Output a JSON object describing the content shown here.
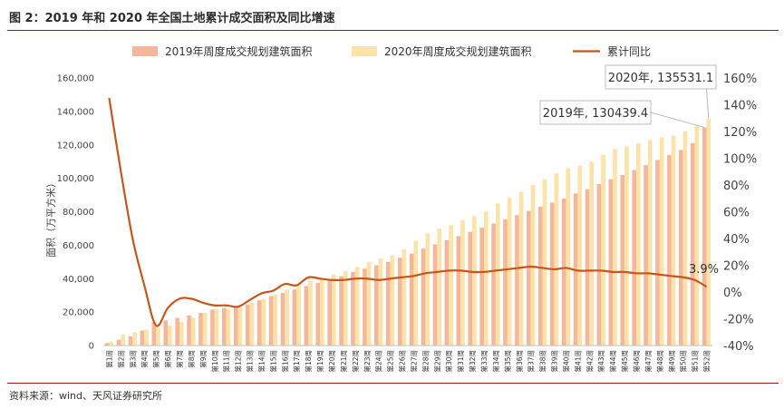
{
  "header": {
    "title": "图 2：2019 年和 2020 年全国土地累计成交面积及同比增速"
  },
  "footer": {
    "source": "资料来源：wind、天风证券研究所"
  },
  "chart_data": {
    "type": "bar",
    "ylabel": "面积（万平方米）",
    "ylim": [
      0,
      160000
    ],
    "y_ticks": [
      "0",
      "20,000",
      "40,000",
      "60,000",
      "80,000",
      "100,000",
      "120,000",
      "140,000",
      "160,000"
    ],
    "y2lim": [
      -40,
      160
    ],
    "y2_ticks": [
      "-40%",
      "-20%",
      "0%",
      "20%",
      "40%",
      "60%",
      "80%",
      "100%",
      "120%",
      "140%",
      "160%"
    ],
    "legend_position": "top",
    "categories": [
      "第1周",
      "第2周",
      "第3周",
      "第4周",
      "第5周",
      "第6周",
      "第7周",
      "第8周",
      "第9周",
      "第10周",
      "第11周",
      "第12周",
      "第13周",
      "第14周",
      "第15周",
      "第16周",
      "第17周",
      "第18周",
      "第19周",
      "第20周",
      "第21周",
      "第22周",
      "第23周",
      "第24周",
      "第25周",
      "第26周",
      "第27周",
      "第28周",
      "第29周",
      "第30周",
      "第31周",
      "第32周",
      "第33周",
      "第34周",
      "第35周",
      "第36周",
      "第37周",
      "第38周",
      "第39周",
      "第40周",
      "第41周",
      "第42周",
      "第43周",
      "第44周",
      "第45周",
      "第46周",
      "第47周",
      "第48周",
      "第49周",
      "第50周",
      "第51周",
      "第52周"
    ],
    "series": [
      {
        "name": "2019年周度成交规划建筑面积",
        "kind": "bar",
        "color": "#f5b79b",
        "values": [
          1500,
          3500,
          5500,
          9000,
          14000,
          15000,
          16500,
          18000,
          19500,
          21500,
          22500,
          23000,
          24500,
          27000,
          29500,
          31500,
          33500,
          35500,
          37500,
          39500,
          41500,
          44000,
          46000,
          48000,
          50000,
          52500,
          55000,
          58000,
          60500,
          63000,
          65500,
          68000,
          70500,
          73000,
          75500,
          78000,
          80500,
          83000,
          85500,
          88000,
          91000,
          93500,
          96500,
          99500,
          102000,
          105000,
          108000,
          111000,
          114000,
          117000,
          121000,
          130439.4
        ]
      },
      {
        "name": "2020年周度成交规划建筑面积",
        "kind": "bar",
        "color": "#fde3a8",
        "values": [
          2500,
          6500,
          8000,
          9500,
          11000,
          12000,
          14000,
          16500,
          19500,
          21500,
          22000,
          23000,
          25500,
          28000,
          30500,
          33500,
          36500,
          38500,
          40000,
          42500,
          44500,
          47000,
          50000,
          52000,
          54000,
          57500,
          62500,
          67000,
          70000,
          72000,
          75000,
          77500,
          80000,
          85000,
          88500,
          92000,
          96000,
          99500,
          103000,
          106000,
          107500,
          110000,
          114000,
          117500,
          119000,
          121000,
          123000,
          124500,
          125500,
          128000,
          131500,
          135531.1
        ]
      },
      {
        "name": "累计同比",
        "kind": "line",
        "axis": "right",
        "color": "#c5571a",
        "values": [
          145,
          90,
          40,
          5,
          -25,
          -12,
          -5,
          -5,
          -8,
          -10,
          -10,
          -11,
          -6,
          -1,
          1,
          6,
          5,
          11,
          10,
          9,
          9,
          10,
          10,
          9,
          10,
          11,
          12,
          14,
          15,
          16,
          16,
          15,
          15,
          16,
          17,
          18,
          19,
          18,
          17,
          18,
          16,
          16,
          16,
          15,
          15,
          14,
          14,
          13,
          12,
          11,
          9,
          3.9
        ]
      }
    ],
    "annotations": [
      {
        "text": "2019年, 130439.4",
        "series": 0,
        "index": 51
      },
      {
        "text": "2020年, 135531.1",
        "series": 1,
        "index": 51
      },
      {
        "text": "3.9%",
        "series": 2,
        "index": 51
      }
    ]
  }
}
